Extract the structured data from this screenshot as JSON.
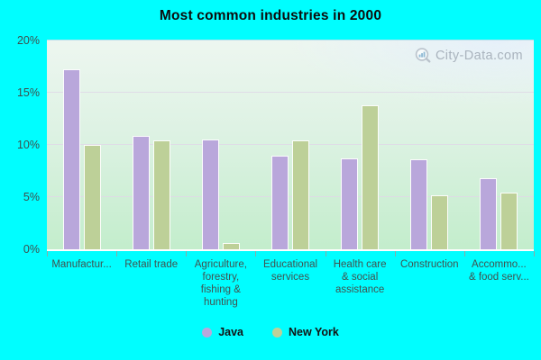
{
  "watermark": "City-Data.com",
  "colors": {
    "background": "#00feff",
    "java_bar": "#b9a7db",
    "new_york_bar": "#bdd098",
    "bar_border": "#ffffff",
    "gridline": "#dfd8e6",
    "axis_text": "#3e4f4d",
    "title_text": "#0d0d0d",
    "watermark_text": "#a9b3bd"
  },
  "y_axis": {
    "ticks": [
      0,
      5,
      10,
      15,
      20
    ],
    "suffix": "%",
    "max": 20
  },
  "chart_data": {
    "type": "bar",
    "title": "Most common industries in 2000",
    "categories": [
      "Manufactur...",
      "Retail trade",
      "Agriculture,\nforestry,\nfishing &\nhunting",
      "Educational\nservices",
      "Health care\n& social\nassistance",
      "Construction",
      "Accommo...\n& food serv..."
    ],
    "series": [
      {
        "name": "Java",
        "color": "#b9a7db",
        "values": [
          17.2,
          10.9,
          10.5,
          9.0,
          8.7,
          8.6,
          6.8
        ]
      },
      {
        "name": "New York",
        "color": "#bdd098",
        "values": [
          10.0,
          10.4,
          0.6,
          10.4,
          13.8,
          5.2,
          5.4
        ]
      }
    ],
    "xlabel": "",
    "ylabel": "",
    "ylim": [
      0,
      20
    ],
    "grid": true,
    "legend_position": "bottom"
  }
}
